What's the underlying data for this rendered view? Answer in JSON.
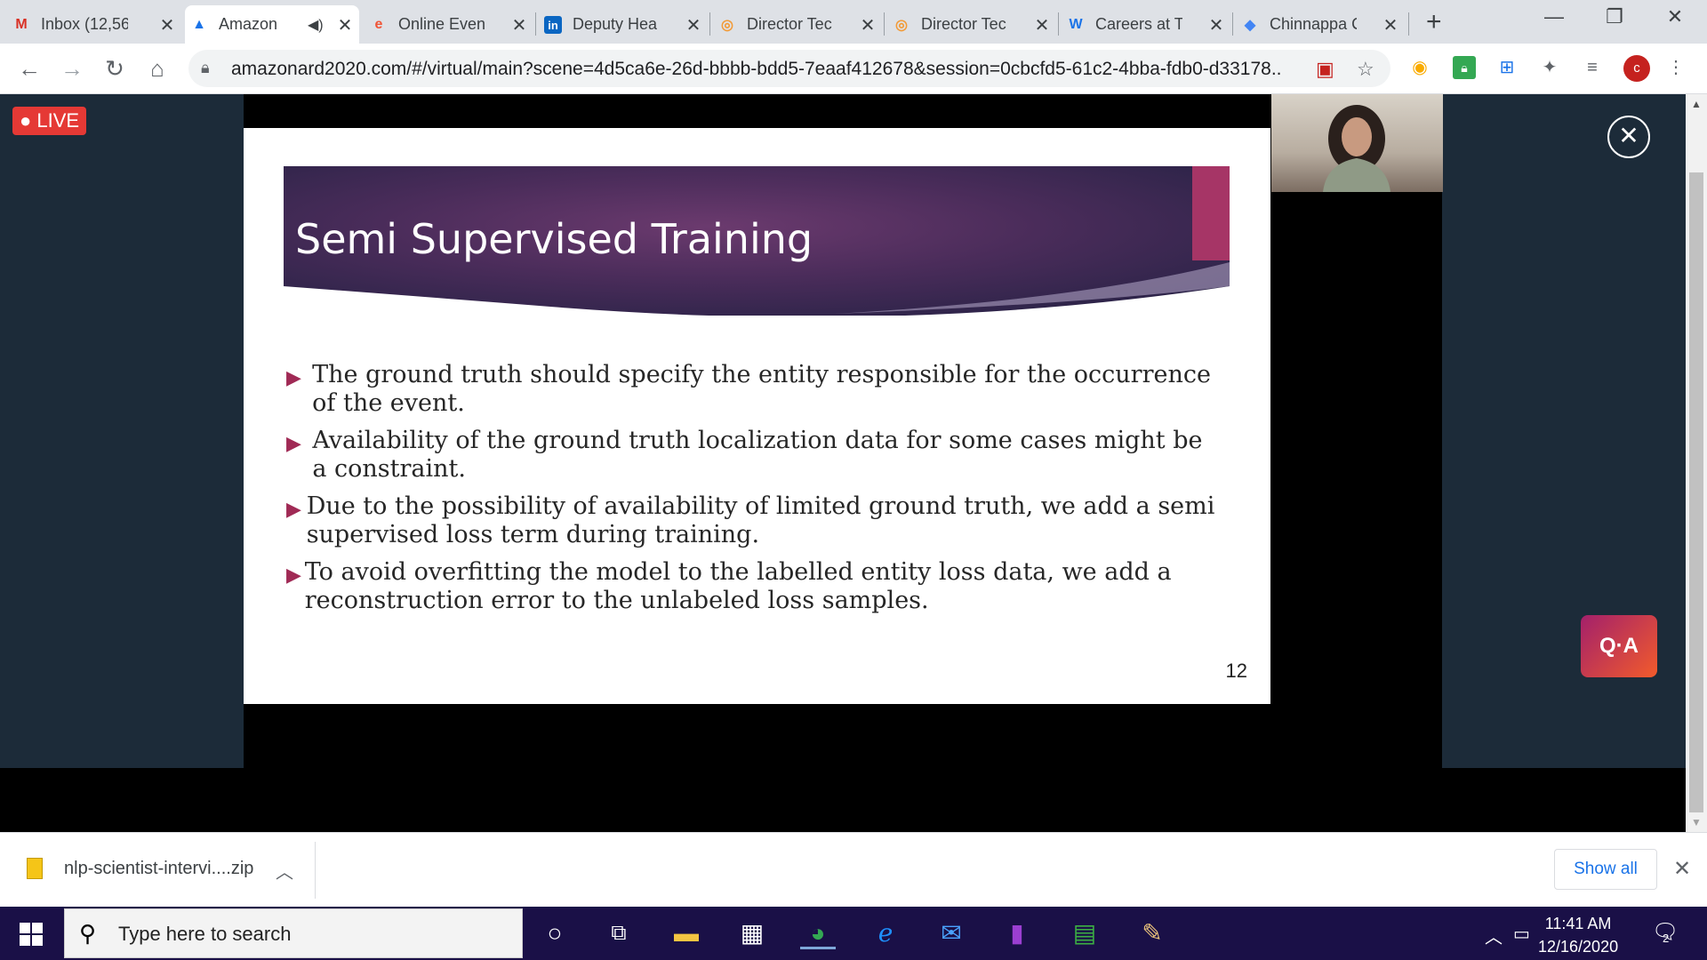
{
  "tabs": [
    {
      "title": "Inbox (12,56",
      "favicon": "M",
      "favicon_color": "#d93025",
      "active": false
    },
    {
      "title": "Amazon",
      "favicon": "A",
      "favicon_color": "#1a73e8",
      "active": true,
      "audio": true
    },
    {
      "title": "Online Event",
      "favicon": "e",
      "favicon_color": "#f05537",
      "active": false
    },
    {
      "title": "Deputy Hea",
      "favicon": "in",
      "favicon_color": "#0a66c2",
      "active": false
    },
    {
      "title": "Director Tec",
      "favicon": "◎",
      "favicon_color": "#f29b38",
      "active": false
    },
    {
      "title": "Director Tec",
      "favicon": "◎",
      "favicon_color": "#f29b38",
      "active": false
    },
    {
      "title": "Careers at T",
      "favicon": "W",
      "favicon_color": "#1a73e8",
      "active": false
    },
    {
      "title": "Chinnappa C",
      "favicon": "◆",
      "favicon_color": "#4285f4",
      "active": false
    }
  ],
  "toolbar": {
    "url": "amazonard2020.com/#/virtual/main?scene=4d5ca6e-26d-bbbb-bdd5-7eaaf412678&session=0cbcfd5-61c2-4bba-fdb0-d33178...",
    "avatar_letter": "c"
  },
  "stage": {
    "live_label": "● LIVE",
    "qa_label": "Q·A",
    "close_glyph": "✕"
  },
  "slide": {
    "title": "Semi Supervised Training",
    "bullets": [
      "The ground truth should specify the entity responsible for the occurrence of the event.",
      "Availability of the ground truth localization data for some cases might be a constraint.",
      "Due to the possibility of availability of limited ground truth, we add a semi supervised loss term during training.",
      "To avoid overfitting the model to the labelled entity loss data, we add a reconstruction error to the unlabeled loss samples."
    ],
    "page_number": "12",
    "accent_color": "#a02a55"
  },
  "download": {
    "filename": "nlp-scientist-intervi....zip",
    "show_all": "Show all"
  },
  "taskbar": {
    "search_placeholder": "Type here to search",
    "time": "11:41 AM",
    "date": "12/16/2020",
    "notifications": "2"
  }
}
